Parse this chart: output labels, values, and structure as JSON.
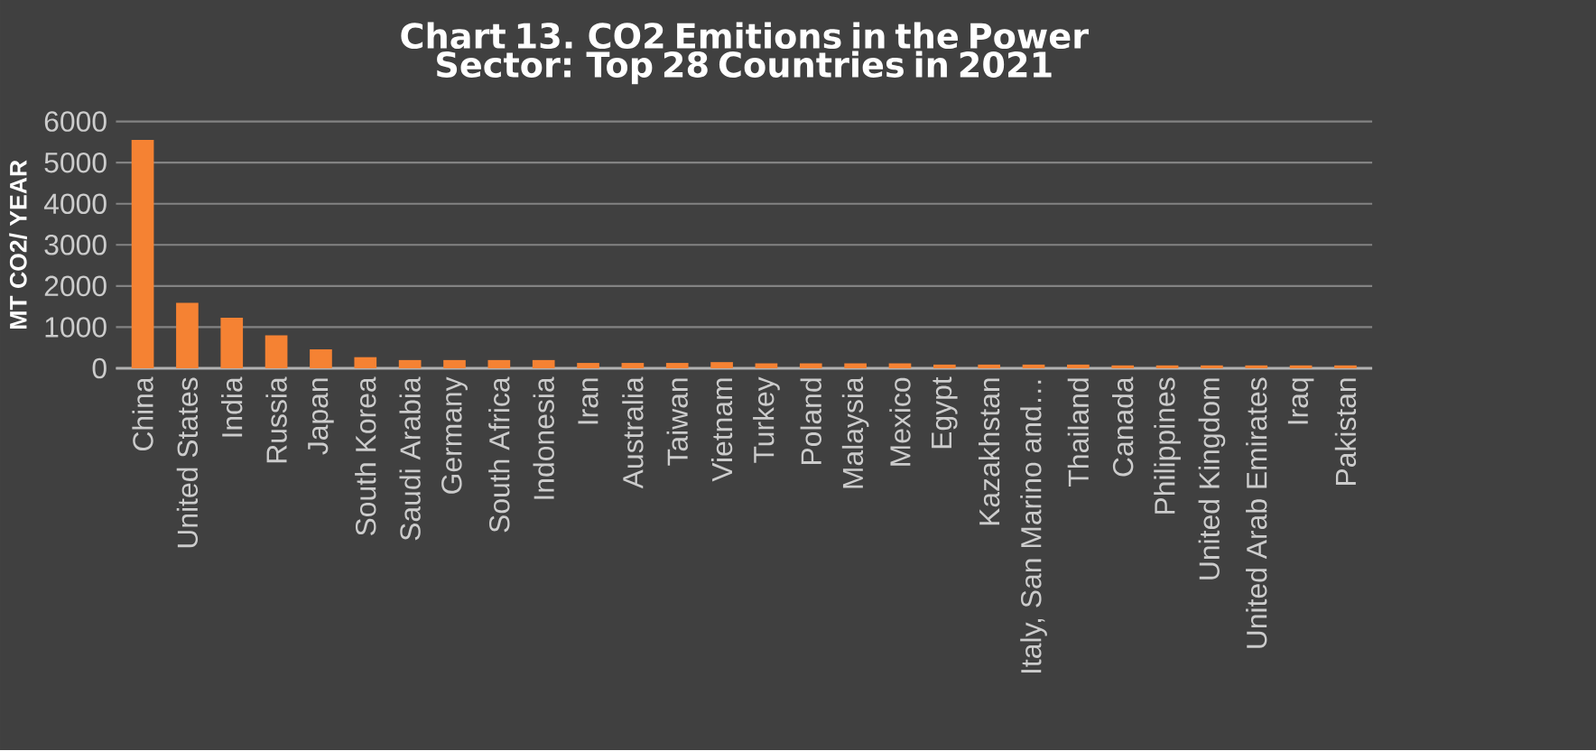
{
  "chart_data": {
    "type": "bar",
    "title": "Chart 13. CO2 Emitions in the Power Sector: Top 28 Countries in 2021",
    "ylabel": "MT CO2/ YEAR",
    "categories": [
      "China",
      "United States",
      "India",
      "Russia",
      "Japan",
      "South Korea",
      "Saudi Arabia",
      "Germany",
      "South Africa",
      "Indonesia",
      "Iran",
      "Australia",
      "Taiwan",
      "Vietnam",
      "Turkey",
      "Poland",
      "Malaysia",
      "Mexico",
      "Egypt",
      "Kazakhstan",
      "Italy, San Marino and…",
      "Thailand",
      "Canada",
      "Philippines",
      "United Kingdom",
      "United Arab Emirates",
      "Iraq",
      "Pakistan"
    ],
    "values": [
      5550,
      1590,
      1230,
      800,
      460,
      270,
      200,
      200,
      200,
      200,
      130,
      130,
      130,
      150,
      120,
      120,
      120,
      120,
      90,
      90,
      90,
      90,
      70,
      70,
      70,
      70,
      70,
      70
    ],
    "color": "#f58233",
    "ylim": [
      0,
      6000
    ],
    "yticks": [
      0,
      1000,
      2000,
      3000,
      4000,
      5000,
      6000
    ],
    "grid": "y"
  }
}
